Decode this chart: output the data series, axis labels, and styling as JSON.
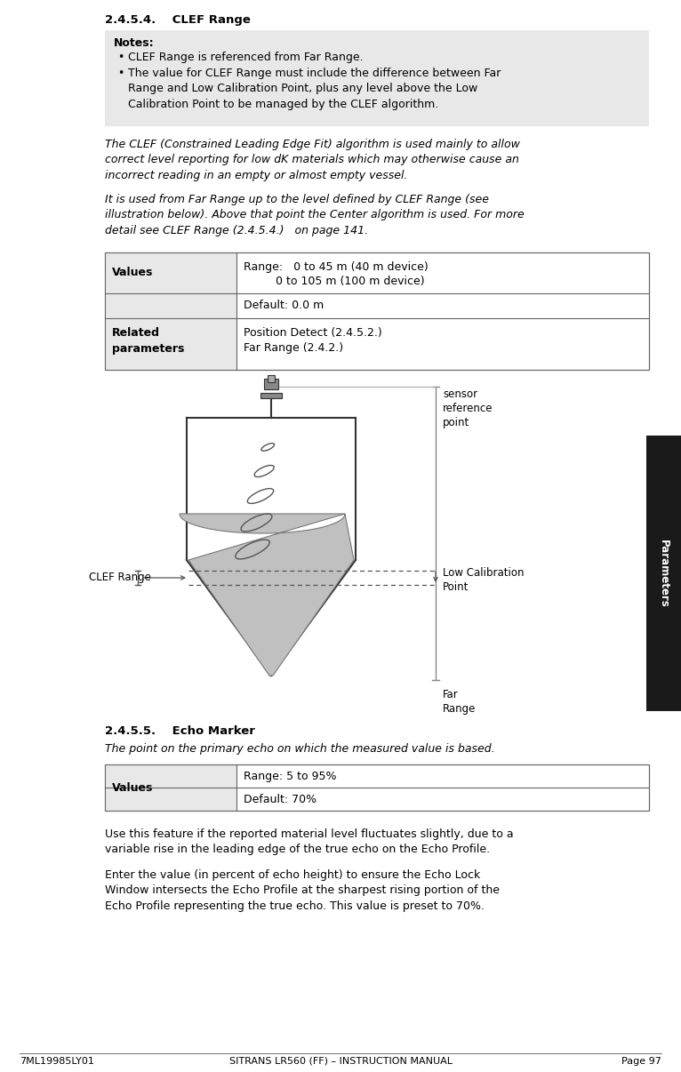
{
  "page_bg": "#ffffff",
  "sidebar_color": "#1a1a1a",
  "sidebar_text": "Parameters",
  "sidebar_text_color": "#ffffff",
  "section_title_1": "2.4.5.4.    CLEF Range",
  "notes_title": "Notes:",
  "note_1": "CLEF Range is referenced from Far Range.",
  "note_2": "The value for CLEF Range must include the difference between Far\nRange and Low Calibration Point, plus any level above the Low\nCalibration Point to be managed by the CLEF algorithm.",
  "italic_text_1": "The CLEF (Constrained Leading Edge Fit) algorithm is used mainly to allow\ncorrect level reporting for low dK materials which may otherwise cause an\nincorrect reading in an empty or almost empty vessel.",
  "italic_text_2": "It is used from Far Range up to the level defined by CLEF Range (see\nillustration below). Above that point the Center algorithm is used. For more\ndetail see CLEF Range (2.4.5.4.)   on page 141.",
  "table1_col1_row1": "Values",
  "table1_col2_row1a": "Range:   0 to 45 m (40 m device)",
  "table1_col2_row1b": "         0 to 105 m (100 m device)",
  "table1_col2_row2": "Default: 0.0 m",
  "table1_col1_row3": "Related\nparameters",
  "table1_col2_row3a": "Position Detect (2.4.5.2.)",
  "table1_col2_row3b": "Far Range (2.4.2.)",
  "label_sensor": "sensor\nreference\npoint",
  "label_clef": "CLEF Range",
  "label_lowcal": "Low Calibration\nPoint",
  "label_farrange": "Far\nRange",
  "section_title_2": "2.4.5.5.    Echo Marker",
  "italic_text_3": "The point on the primary echo on which the measured value is based.",
  "table2_col1": "Values",
  "table2_col2_row1": "Range: 5 to 95%",
  "table2_col2_row2": "Default: 70%",
  "body_text_1": "Use this feature if the reported material level fluctuates slightly, due to a\nvariable rise in the leading edge of the true echo on the Echo Profile.",
  "body_text_2": "Enter the value (in percent of echo height) to ensure the Echo Lock\nWindow intersects the Echo Profile at the sharpest rising portion of the\nEcho Profile representing the true echo. This value is preset to 70%.",
  "footer_left": "7ML19985LY01",
  "footer_center": "SITRANS LR560 (FF) – INSTRUCTION MANUAL",
  "footer_right": "Page 97"
}
